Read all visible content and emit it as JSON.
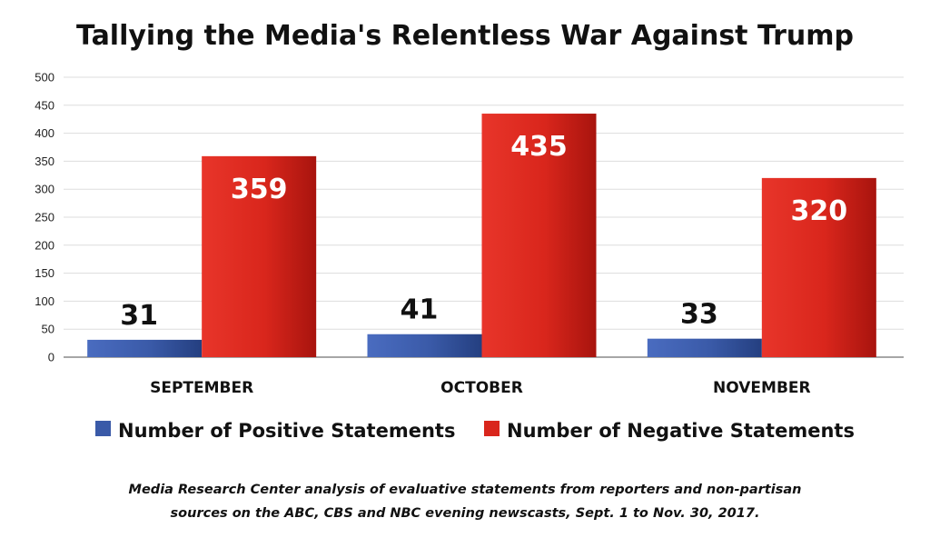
{
  "chart_data": {
    "type": "bar",
    "title": "Tallying the Media's Relentless War Against Trump",
    "categories": [
      "SEPTEMBER",
      "OCTOBER",
      "NOVEMBER"
    ],
    "series": [
      {
        "name": "Number of Positive Statements",
        "values": [
          31,
          41,
          33
        ],
        "color": "#3a5aa8"
      },
      {
        "name": "Number of Negative Statements",
        "values": [
          359,
          435,
          320
        ],
        "color": "#d9261c"
      }
    ],
    "ylim": [
      0,
      500
    ],
    "yticks": [
      "0",
      "50",
      "100",
      "150",
      "200",
      "250",
      "300",
      "350",
      "400",
      "450",
      "500"
    ],
    "grid": true,
    "legend": "bottom",
    "note_lines": [
      "Media Research Center analysis of evaluative statements from reporters and non-partisan",
      "sources on the ABC, CBS and NBC evening newscasts, Sept. 1 to Nov. 30, 2017."
    ]
  }
}
